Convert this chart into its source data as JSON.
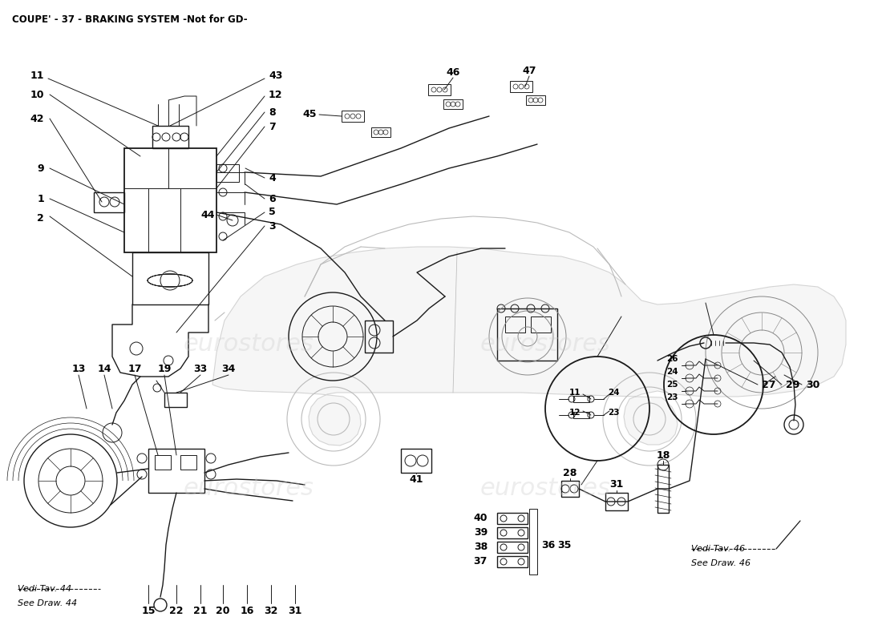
{
  "title": "COUPE' - 37 - BRAKING SYSTEM -Not for GD-",
  "title_fontsize": 8.5,
  "title_fontweight": "bold",
  "bg_color": "#ffffff",
  "fig_width": 11.0,
  "fig_height": 8.0,
  "dpi": 100,
  "note_left_line1": "Vedi Tav. 44",
  "note_left_line2": "See Draw. 44",
  "note_right_line1": "Vedi Tav. 46",
  "note_right_line2": "See Draw. 46",
  "watermark_color": "#cccccc",
  "watermark_alpha": 0.35,
  "watermark_fontsize": 22
}
